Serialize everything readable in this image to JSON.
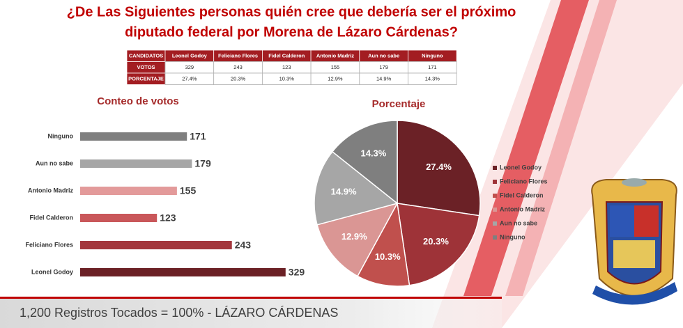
{
  "title": [
    "¿De Las Siguientes personas quién cree que debería ser el próximo",
    "diputado federal por Morena de Lázaro Cárdenas?"
  ],
  "table": {
    "header": [
      "CANDIDATOS",
      "Leonel Godoy",
      "Feliciano Flores",
      "Fidel Calderon",
      "Antonio Madriz",
      "Aun no sabe",
      "Ninguno"
    ],
    "rows": [
      [
        "VOTOS",
        "329",
        "243",
        "123",
        "155",
        "179",
        "171"
      ],
      [
        "PORCENTAJE",
        "27.4%",
        "20.3%",
        "10.3%",
        "12.9%",
        "14.9%",
        "14.3%"
      ]
    ]
  },
  "chart_data": [
    {
      "type": "bar",
      "title": "Conteo de votos",
      "categories": [
        "Ninguno",
        "Aun no sabe",
        "Antonio Madriz",
        "Fidel Calderon",
        "Feliciano Flores",
        "Leonel Godoy"
      ],
      "values": [
        171,
        179,
        155,
        123,
        243,
        329
      ],
      "colors": [
        "#7f7f7f",
        "#a6a6a6",
        "#e39a9a",
        "#c9575a",
        "#a3363c",
        "#6b2126"
      ]
    },
    {
      "type": "pie",
      "title": "Porcentaje",
      "categories": [
        "Leonel Godoy",
        "Feliciano Flores",
        "Fidel Calderon",
        "Antonio Madriz",
        "Aun no sabe",
        "Ninguno"
      ],
      "values": [
        27.4,
        20.3,
        10.3,
        12.9,
        14.9,
        14.3
      ],
      "value_labels": [
        "27.4%",
        "20.3%",
        "10.3%",
        "12.9%",
        "14.9%",
        "14.3%"
      ],
      "colors": [
        "#6b2126",
        "#9e3338",
        "#c0504d",
        "#da9694",
        "#a6a6a6",
        "#7f7f7f"
      ]
    }
  ],
  "footer": "1,200 Registros Tocados = 100% - LÁZARO CÁRDENAS"
}
